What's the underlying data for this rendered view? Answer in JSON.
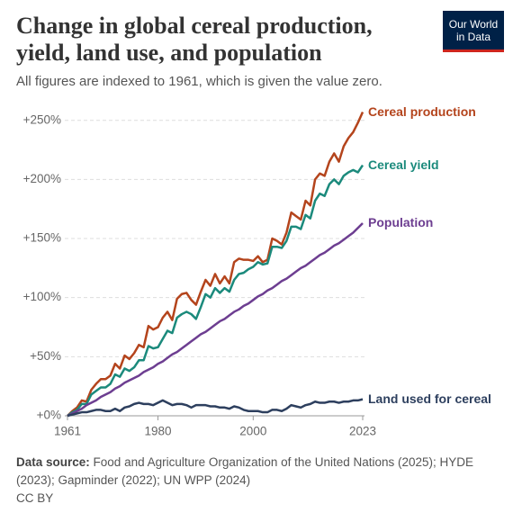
{
  "chart_data": {
    "type": "line",
    "title": "Change in global cereal production, yield, land use, and population",
    "subtitle": "All figures are indexed to 1961, which is given the value zero.",
    "logo": "Our World in Data",
    "source_label": "Data source:",
    "source": "Food and Agriculture Organization of the United Nations (2025); HYDE (2023); Gapminder (2022); UN WPP (2024)",
    "license": "CC BY",
    "x": [
      1961,
      1962,
      1963,
      1964,
      1965,
      1966,
      1967,
      1968,
      1969,
      1970,
      1971,
      1972,
      1973,
      1974,
      1975,
      1976,
      1977,
      1978,
      1979,
      1980,
      1981,
      1982,
      1983,
      1984,
      1985,
      1986,
      1987,
      1988,
      1989,
      1990,
      1991,
      1992,
      1993,
      1994,
      1995,
      1996,
      1997,
      1998,
      1999,
      2000,
      2001,
      2002,
      2003,
      2004,
      2005,
      2006,
      2007,
      2008,
      2009,
      2010,
      2011,
      2012,
      2013,
      2014,
      2015,
      2016,
      2017,
      2018,
      2019,
      2020,
      2021,
      2022,
      2023
    ],
    "series": [
      {
        "name": "Cereal production",
        "color": "#b4441c",
        "values": [
          0,
          4,
          7,
          13,
          12,
          22,
          27,
          31,
          31,
          34,
          44,
          40,
          51,
          48,
          53,
          60,
          58,
          76,
          73,
          75,
          83,
          88,
          81,
          99,
          103,
          104,
          98,
          94,
          105,
          115,
          110,
          120,
          112,
          118,
          112,
          130,
          133,
          132,
          132,
          131,
          135,
          130,
          132,
          150,
          148,
          145,
          155,
          172,
          169,
          166,
          182,
          178,
          200,
          205,
          203,
          215,
          222,
          215,
          228,
          235,
          240,
          248,
          257
        ]
      },
      {
        "name": "Cereal yield",
        "color": "#1b8a7c",
        "values": [
          0,
          3,
          5,
          10,
          10,
          18,
          21,
          24,
          24,
          27,
          35,
          33,
          40,
          38,
          41,
          47,
          47,
          59,
          57,
          58,
          65,
          72,
          70,
          83,
          86,
          88,
          86,
          82,
          92,
          103,
          100,
          108,
          104,
          108,
          105,
          115,
          120,
          121,
          124,
          126,
          130,
          128,
          129,
          143,
          143,
          142,
          148,
          160,
          160,
          158,
          170,
          167,
          182,
          188,
          186,
          196,
          200,
          196,
          203,
          206,
          208,
          206,
          212
        ]
      },
      {
        "name": "Population",
        "color": "#6d3e91",
        "values": [
          0,
          2,
          4,
          6,
          9,
          11,
          13,
          16,
          18,
          20,
          23,
          25,
          28,
          30,
          32,
          34,
          37,
          39,
          41,
          44,
          46,
          49,
          52,
          54,
          57,
          60,
          63,
          66,
          69,
          71,
          74,
          77,
          80,
          82,
          85,
          88,
          90,
          93,
          95,
          98,
          101,
          103,
          106,
          108,
          111,
          114,
          116,
          119,
          122,
          125,
          127,
          130,
          133,
          136,
          138,
          141,
          144,
          146,
          149,
          152,
          155,
          159,
          163
        ]
      },
      {
        "name": "Land used for cereal",
        "color": "#2d3f5e",
        "values": [
          0,
          1,
          2,
          3,
          3,
          4,
          5,
          5,
          4,
          4,
          6,
          4,
          7,
          8,
          10,
          11,
          10,
          10,
          9,
          11,
          13,
          11,
          9,
          10,
          10,
          9,
          7,
          9,
          9,
          9,
          8,
          8,
          7,
          7,
          6,
          8,
          7,
          5,
          4,
          4,
          4,
          3,
          3,
          5,
          5,
          4,
          6,
          9,
          8,
          7,
          9,
          10,
          12,
          11,
          11,
          12,
          12,
          11,
          12,
          12,
          13,
          13,
          14
        ]
      }
    ],
    "xlim": [
      1961,
      2023
    ],
    "xticks": [
      1961,
      1980,
      2000,
      2023
    ],
    "ylim": [
      0,
      265
    ],
    "yticks": [
      {
        "value": 0,
        "label": "+0%"
      },
      {
        "value": 50,
        "label": "+50%"
      },
      {
        "value": 100,
        "label": "+100%"
      },
      {
        "value": 150,
        "label": "+150%"
      },
      {
        "value": 200,
        "label": "+200%"
      },
      {
        "value": 250,
        "label": "+250%"
      }
    ],
    "grid": true
  }
}
